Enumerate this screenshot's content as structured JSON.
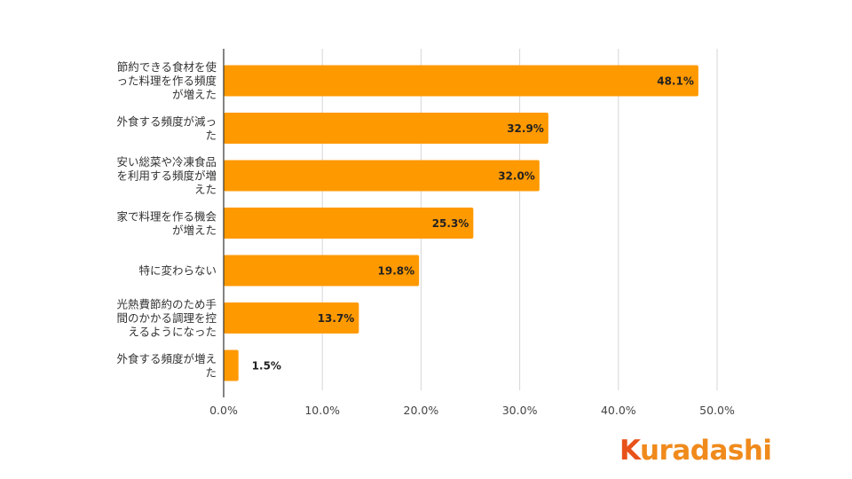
{
  "chart_data": {
    "type": "bar",
    "orientation": "horizontal",
    "categories": [
      "節約できる食材を使った料理を作る頻度が増えた",
      "外食する頻度が減った",
      "安い総菜や冷凍食品を利用する頻度が増えた",
      "家で料理を作る機会が増えた",
      "特に変わらない",
      "光熱費節約のため手間のかかる調理を控えるようになった",
      "外食する頻度が増えた"
    ],
    "category_lines": [
      [
        "節約できる食材を使",
        "った料理を作る頻度",
        "が増えた"
      ],
      [
        "外食する頻度が減っ",
        "た"
      ],
      [
        "安い総菜や冷凍食品",
        "を利用する頻度が増",
        "えた"
      ],
      [
        "家で料理を作る機会",
        "が増えた"
      ],
      [
        "特に変わらない"
      ],
      [
        "光熱費節約のため手",
        "間のかかる調理を控",
        "えるようになった"
      ],
      [
        "外食する頻度が増え",
        "た"
      ]
    ],
    "values": [
      48.1,
      32.9,
      32.0,
      25.3,
      19.8,
      13.7,
      1.5
    ],
    "value_labels": [
      "48.1%",
      "32.9%",
      "32.0%",
      "25.3%",
      "19.8%",
      "13.7%",
      "1.5%"
    ],
    "xlim": [
      0,
      50
    ],
    "x_ticks": [
      0,
      10,
      20,
      30,
      40,
      50
    ],
    "x_tick_labels": [
      "0.0%",
      "10.0%",
      "20.0%",
      "30.0%",
      "40.0%",
      "50.0%"
    ],
    "bar_color": "#ff9900",
    "grid": true
  },
  "logo": {
    "first": "K",
    "rest": "uradashi"
  }
}
